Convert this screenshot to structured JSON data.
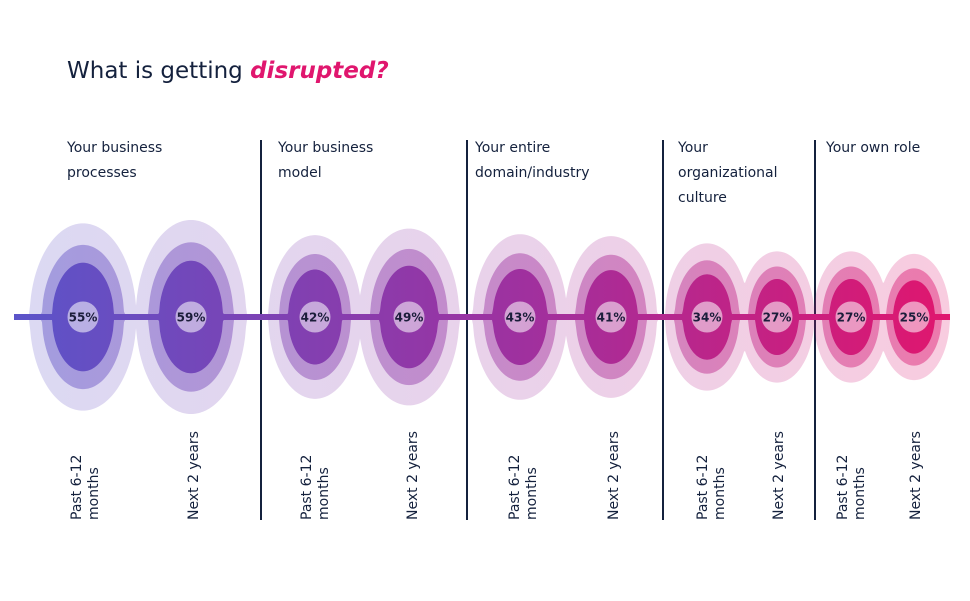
{
  "title": {
    "prefix": "What is getting ",
    "highlight": "disrupted?"
  },
  "chart_data": {
    "type": "bubble",
    "title": "What is getting disrupted?",
    "categories": [
      {
        "label_lines": [
          "Your business",
          "processes"
        ],
        "values": [
          55,
          59
        ]
      },
      {
        "label_lines": [
          "Your business",
          "model"
        ],
        "values": [
          42,
          49
        ]
      },
      {
        "label_lines": [
          "Your entire",
          "domain/industry"
        ],
        "values": [
          43,
          41
        ]
      },
      {
        "label_lines": [
          "Your",
          "organizational",
          "culture"
        ],
        "values": [
          34,
          27
        ]
      },
      {
        "label_lines": [
          "Your own role"
        ],
        "values": [
          27,
          25
        ]
      }
    ],
    "periods": [
      {
        "label_lines": [
          "Past 6-12",
          "months"
        ]
      },
      {
        "label_lines": [
          "Next 2 years"
        ]
      }
    ],
    "value_suffix": "%",
    "gradient": {
      "start": "#5b54c9",
      "mid": "#a0309e",
      "end": "#e0166e"
    }
  }
}
